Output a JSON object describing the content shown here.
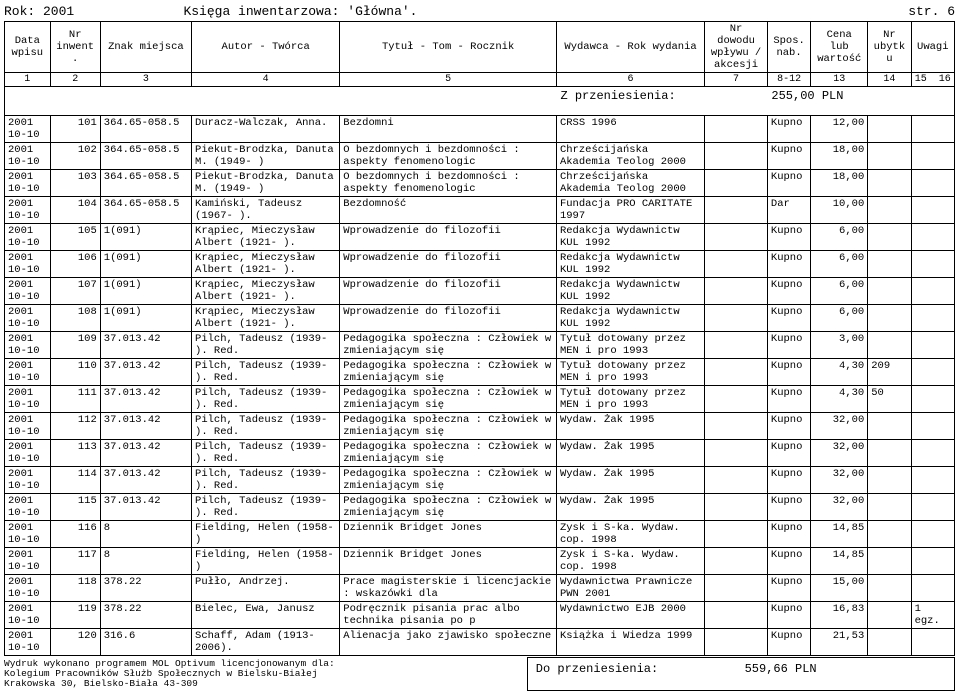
{
  "header": {
    "year_label": "Rok: 2001",
    "book_label": "Księga inwentarzowa: 'Główna'.",
    "page_label": "str. 6"
  },
  "columns": {
    "c1": "Data wpisu",
    "c2": "Nr inwent.",
    "c3": "Znak miejsca",
    "c4": "Autor - Twórca",
    "c5": "Tytuł - Tom - Rocznik",
    "c6": "Wydawca - Rok wydania",
    "c7": "Nr dowodu wpływu / akcesji",
    "c8": "Spos. nab.",
    "c9": "Cena lub wartość",
    "c10": "Nr ubytku",
    "c11": "Uwagi"
  },
  "colnums": {
    "n1": "1",
    "n2": "2",
    "n3": "3",
    "n4": "4",
    "n5": "5",
    "n6": "6",
    "n7": "7",
    "n8": "8-12",
    "n9": "13",
    "n10": "14",
    "n11": "15",
    "n12": "16"
  },
  "transfer_in": {
    "label": "Z przeniesienia:",
    "amount": "255,00 PLN"
  },
  "transfer_out": {
    "label": "Do przeniesienia:",
    "amount": "559,66 PLN"
  },
  "rows": [
    {
      "date": "2001 10-10",
      "inv": "101",
      "sig": "364.65-058.5",
      "author": "Duracz-Walczak, Anna.",
      "title": "Bezdomni",
      "pub": "CRSS 1996",
      "doc": "",
      "nab": "Kupno",
      "price": "12,00",
      "ub": "",
      "uw": ""
    },
    {
      "date": "2001 10-10",
      "inv": "102",
      "sig": "364.65-058.5",
      "author": "Piekut-Brodzka, Danuta M. (1949- )",
      "title": "O bezdomnych i bezdomności : aspekty fenomenologic",
      "pub": "Chrześcijańska Akademia Teolog 2000",
      "doc": "",
      "nab": "Kupno",
      "price": "18,00",
      "ub": "",
      "uw": ""
    },
    {
      "date": "2001 10-10",
      "inv": "103",
      "sig": "364.65-058.5",
      "author": "Piekut-Brodzka, Danuta M. (1949- )",
      "title": "O bezdomnych i bezdomności : aspekty fenomenologic",
      "pub": "Chrześcijańska Akademia Teolog 2000",
      "doc": "",
      "nab": "Kupno",
      "price": "18,00",
      "ub": "",
      "uw": ""
    },
    {
      "date": "2001 10-10",
      "inv": "104",
      "sig": "364.65-058.5",
      "author": "Kamiński, Tadeusz (1967- ).",
      "title": "Bezdomność",
      "pub": "Fundacja PRO CARITATE 1997",
      "doc": "",
      "nab": "Dar",
      "price": "10,00",
      "ub": "",
      "uw": ""
    },
    {
      "date": "2001 10-10",
      "inv": "105",
      "sig": "1(091)",
      "author": "Krąpiec, Mieczysław Albert (1921- ).",
      "title": "Wprowadzenie do filozofii",
      "pub": "Redakcja Wydawnictw KUL 1992",
      "doc": "",
      "nab": "Kupno",
      "price": "6,00",
      "ub": "",
      "uw": ""
    },
    {
      "date": "2001 10-10",
      "inv": "106",
      "sig": "1(091)",
      "author": "Krąpiec, Mieczysław Albert (1921- ).",
      "title": "Wprowadzenie do filozofii",
      "pub": "Redakcja Wydawnictw KUL 1992",
      "doc": "",
      "nab": "Kupno",
      "price": "6,00",
      "ub": "",
      "uw": ""
    },
    {
      "date": "2001 10-10",
      "inv": "107",
      "sig": "1(091)",
      "author": "Krąpiec, Mieczysław Albert (1921- ).",
      "title": "Wprowadzenie do filozofii",
      "pub": "Redakcja Wydawnictw KUL 1992",
      "doc": "",
      "nab": "Kupno",
      "price": "6,00",
      "ub": "",
      "uw": ""
    },
    {
      "date": "2001 10-10",
      "inv": "108",
      "sig": "1(091)",
      "author": "Krąpiec, Mieczysław Albert (1921- ).",
      "title": "Wprowadzenie do filozofii",
      "pub": "Redakcja Wydawnictw KUL 1992",
      "doc": "",
      "nab": "Kupno",
      "price": "6,00",
      "ub": "",
      "uw": ""
    },
    {
      "date": "2001 10-10",
      "inv": "109",
      "sig": "37.013.42",
      "author": "Pilch, Tadeusz (1939- ). Red.",
      "title": "Pedagogika społeczna : Człowiek w zmieniającym się",
      "pub": "Tytuł dotowany przez MEN i pro 1993",
      "doc": "",
      "nab": "Kupno",
      "price": "3,00",
      "ub": "",
      "uw": ""
    },
    {
      "date": "2001 10-10",
      "inv": "110",
      "sig": "37.013.42",
      "author": "Pilch, Tadeusz (1939- ). Red.",
      "title": "Pedagogika społeczna : Człowiek w zmieniającym się",
      "pub": "Tytuł dotowany przez MEN i pro 1993",
      "doc": "",
      "nab": "Kupno",
      "price": "4,30",
      "ub": "209",
      "uw": ""
    },
    {
      "date": "2001 10-10",
      "inv": "111",
      "sig": "37.013.42",
      "author": "Pilch, Tadeusz (1939- ). Red.",
      "title": "Pedagogika społeczna : Człowiek w zmieniającym się",
      "pub": "Tytuł dotowany przez MEN i pro 1993",
      "doc": "",
      "nab": "Kupno",
      "price": "4,30",
      "ub": "50",
      "uw": ""
    },
    {
      "date": "2001 10-10",
      "inv": "112",
      "sig": "37.013.42",
      "author": "Pilch, Tadeusz (1939- ). Red.",
      "title": "Pedagogika społeczna : Człowiek w zmieniającym się",
      "pub": "Wydaw. Żak 1995",
      "doc": "",
      "nab": "Kupno",
      "price": "32,00",
      "ub": "",
      "uw": ""
    },
    {
      "date": "2001 10-10",
      "inv": "113",
      "sig": "37.013.42",
      "author": "Pilch, Tadeusz (1939- ). Red.",
      "title": "Pedagogika społeczna : Człowiek w zmieniającym się",
      "pub": "Wydaw. Żak 1995",
      "doc": "",
      "nab": "Kupno",
      "price": "32,00",
      "ub": "",
      "uw": ""
    },
    {
      "date": "2001 10-10",
      "inv": "114",
      "sig": "37.013.42",
      "author": "Pilch, Tadeusz (1939- ). Red.",
      "title": "Pedagogika społeczna : Człowiek w zmieniającym się",
      "pub": "Wydaw. Żak 1995",
      "doc": "",
      "nab": "Kupno",
      "price": "32,00",
      "ub": "",
      "uw": ""
    },
    {
      "date": "2001 10-10",
      "inv": "115",
      "sig": "37.013.42",
      "author": "Pilch, Tadeusz (1939- ). Red.",
      "title": "Pedagogika społeczna : Człowiek w zmieniającym się",
      "pub": "Wydaw. Żak 1995",
      "doc": "",
      "nab": "Kupno",
      "price": "32,00",
      "ub": "",
      "uw": ""
    },
    {
      "date": "2001 10-10",
      "inv": "116",
      "sig": "8",
      "author": "Fielding, Helen (1958- )",
      "title": "Dziennik Bridget Jones",
      "pub": "Zysk i S-ka. Wydaw. cop. 1998",
      "doc": "",
      "nab": "Kupno",
      "price": "14,85",
      "ub": "",
      "uw": ""
    },
    {
      "date": "2001 10-10",
      "inv": "117",
      "sig": "8",
      "author": "Fielding, Helen (1958- )",
      "title": "Dziennik Bridget Jones",
      "pub": "Zysk i S-ka. Wydaw. cop. 1998",
      "doc": "",
      "nab": "Kupno",
      "price": "14,85",
      "ub": "",
      "uw": ""
    },
    {
      "date": "2001 10-10",
      "inv": "118",
      "sig": "378.22",
      "author": "Pułło, Andrzej.",
      "title": "Prace magisterskie i licencjackie : wskazówki dla",
      "pub": "Wydawnictwa Prawnicze PWN 2001",
      "doc": "",
      "nab": "Kupno",
      "price": "15,00",
      "ub": "",
      "uw": ""
    },
    {
      "date": "2001 10-10",
      "inv": "119",
      "sig": "378.22",
      "author": "Bielec, Ewa, Janusz",
      "title": "Podręcznik pisania prac albo technika pisania po p",
      "pub": "Wydawnictwo EJB 2000",
      "doc": "",
      "nab": "Kupno",
      "price": "16,83",
      "ub": "",
      "uw": "1 egz."
    },
    {
      "date": "2001 10-10",
      "inv": "120",
      "sig": "316.6",
      "author": "Schaff, Adam (1913-2006).",
      "title": "Alienacja jako zjawisko społeczne",
      "pub": "Książka i Wiedza 1999",
      "doc": "",
      "nab": "Kupno",
      "price": "21,53",
      "ub": "",
      "uw": ""
    }
  ],
  "footer": {
    "l1": "Wydruk wykonano programem MOL Optivum licencjonowanym dla:",
    "l2": "Kolegium Pracowników Służb Społecznych w Bielsku-Białej",
    "l3": "Krakowska 30, Bielsko-Biała 43-309"
  }
}
